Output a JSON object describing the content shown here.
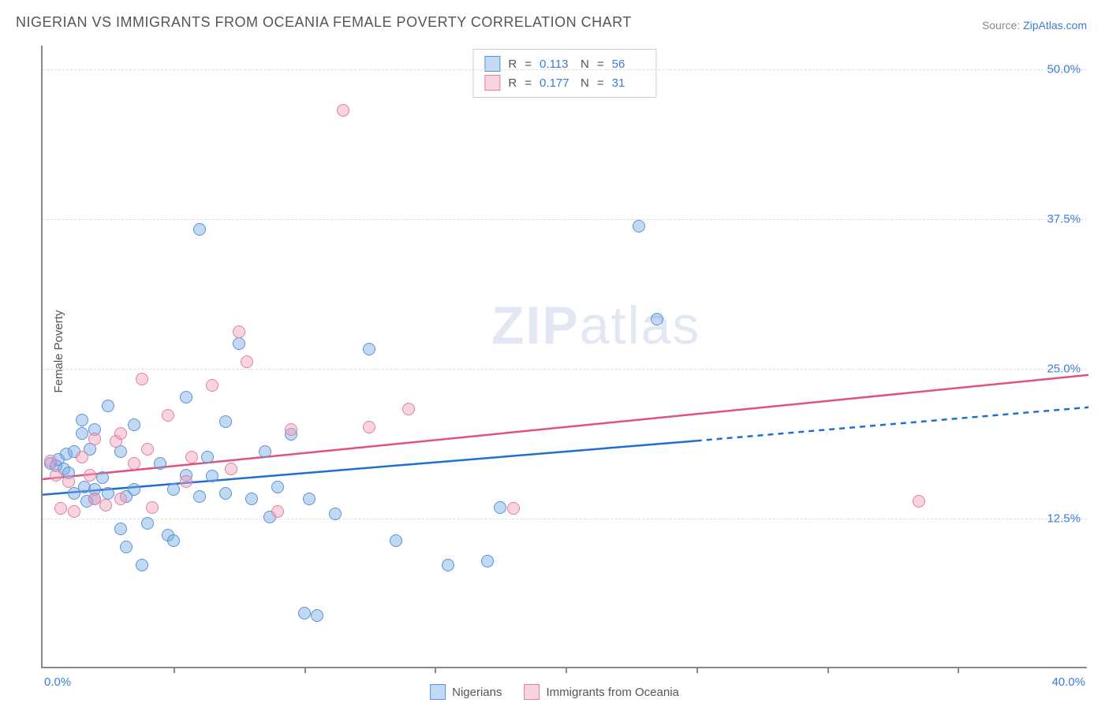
{
  "title": "NIGERIAN VS IMMIGRANTS FROM OCEANIA FEMALE POVERTY CORRELATION CHART",
  "source_prefix": "Source: ",
  "source_link": "ZipAtlas.com",
  "y_axis_title": "Female Poverty",
  "watermark_bold": "ZIP",
  "watermark_light": "atlas",
  "chart": {
    "type": "scatter",
    "xlim": [
      0,
      40
    ],
    "ylim": [
      0,
      52
    ],
    "x_origin_label": "0.0%",
    "x_max_label": "40.0%",
    "y_ticks": [
      12.5,
      25.0,
      37.5,
      50.0
    ],
    "y_tick_labels": [
      "12.5%",
      "25.0%",
      "37.5%",
      "50.0%"
    ],
    "x_tick_positions": [
      5,
      10,
      15,
      20,
      25,
      30,
      35
    ],
    "background_color": "#ffffff",
    "grid_color": "#dddddd",
    "axis_color": "#888888",
    "marker_radius": 8,
    "series": [
      {
        "name": "Nigerians",
        "fill": "rgba(120,170,230,0.45)",
        "stroke": "#5a93d6",
        "line_color": "#1f6fd1",
        "r_value": "0.113",
        "n_value": "56",
        "trend": {
          "x0": 0,
          "y0": 14.5,
          "x1": 25,
          "y1": 19.0,
          "x1_ext": 40,
          "y1_ext": 21.8,
          "dashed_from_x": 25
        },
        "points": [
          [
            0.3,
            17.0
          ],
          [
            0.5,
            16.8
          ],
          [
            0.6,
            17.3
          ],
          [
            0.8,
            16.5
          ],
          [
            0.9,
            17.8
          ],
          [
            1.0,
            16.2
          ],
          [
            1.2,
            18.0
          ],
          [
            1.2,
            14.5
          ],
          [
            1.5,
            19.5
          ],
          [
            1.5,
            20.6
          ],
          [
            1.6,
            15.0
          ],
          [
            1.7,
            13.8
          ],
          [
            1.8,
            18.2
          ],
          [
            2.0,
            14.8
          ],
          [
            2.0,
            19.8
          ],
          [
            2.0,
            14.0
          ],
          [
            2.3,
            15.8
          ],
          [
            2.5,
            21.8
          ],
          [
            2.5,
            14.5
          ],
          [
            3.0,
            18.0
          ],
          [
            3.0,
            11.5
          ],
          [
            3.2,
            14.2
          ],
          [
            3.2,
            10.0
          ],
          [
            3.5,
            20.2
          ],
          [
            3.5,
            14.8
          ],
          [
            3.8,
            8.5
          ],
          [
            4.0,
            12.0
          ],
          [
            4.5,
            17.0
          ],
          [
            4.8,
            11.0
          ],
          [
            5.0,
            14.8
          ],
          [
            5.0,
            10.5
          ],
          [
            5.5,
            16.0
          ],
          [
            5.5,
            22.5
          ],
          [
            6.0,
            36.5
          ],
          [
            6.0,
            14.2
          ],
          [
            6.3,
            17.5
          ],
          [
            6.5,
            15.9
          ],
          [
            7.0,
            14.5
          ],
          [
            7.0,
            20.5
          ],
          [
            7.5,
            27.0
          ],
          [
            8.0,
            14.0
          ],
          [
            8.5,
            18.0
          ],
          [
            8.7,
            12.5
          ],
          [
            9.0,
            15.0
          ],
          [
            9.5,
            19.4
          ],
          [
            10.0,
            4.5
          ],
          [
            10.2,
            14.0
          ],
          [
            10.5,
            4.3
          ],
          [
            11.2,
            12.8
          ],
          [
            12.5,
            26.5
          ],
          [
            13.5,
            10.5
          ],
          [
            15.5,
            8.5
          ],
          [
            17.0,
            8.8
          ],
          [
            17.5,
            13.3
          ],
          [
            22.8,
            36.8
          ],
          [
            23.5,
            29.0
          ]
        ]
      },
      {
        "name": "Immigrants from Oceania",
        "fill": "rgba(240,160,185,0.45)",
        "stroke": "#e37fa0",
        "line_color": "#e0527f",
        "r_value": "0.177",
        "n_value": "31",
        "trend": {
          "x0": 0,
          "y0": 15.8,
          "x1": 40,
          "y1": 24.5,
          "dashed_from_x": 40
        },
        "points": [
          [
            0.3,
            17.2
          ],
          [
            0.5,
            16.0
          ],
          [
            0.7,
            13.2
          ],
          [
            1.0,
            15.5
          ],
          [
            1.2,
            13.0
          ],
          [
            1.5,
            17.5
          ],
          [
            1.8,
            16.0
          ],
          [
            2.0,
            14.0
          ],
          [
            2.0,
            19.0
          ],
          [
            2.4,
            13.5
          ],
          [
            2.8,
            18.8
          ],
          [
            3.0,
            14.0
          ],
          [
            3.0,
            19.5
          ],
          [
            3.5,
            17.0
          ],
          [
            3.8,
            24.0
          ],
          [
            4.0,
            18.2
          ],
          [
            4.2,
            13.3
          ],
          [
            4.8,
            21.0
          ],
          [
            5.5,
            15.5
          ],
          [
            5.7,
            17.5
          ],
          [
            6.5,
            23.5
          ],
          [
            7.2,
            16.5
          ],
          [
            7.5,
            28.0
          ],
          [
            7.8,
            25.5
          ],
          [
            9.0,
            13.0
          ],
          [
            9.5,
            19.8
          ],
          [
            11.5,
            46.5
          ],
          [
            12.5,
            20.0
          ],
          [
            14.0,
            21.5
          ],
          [
            18.0,
            13.2
          ],
          [
            33.5,
            13.8
          ]
        ]
      }
    ]
  },
  "stats_box": {
    "r_label": "R",
    "eq": "=",
    "n_label": "N"
  }
}
